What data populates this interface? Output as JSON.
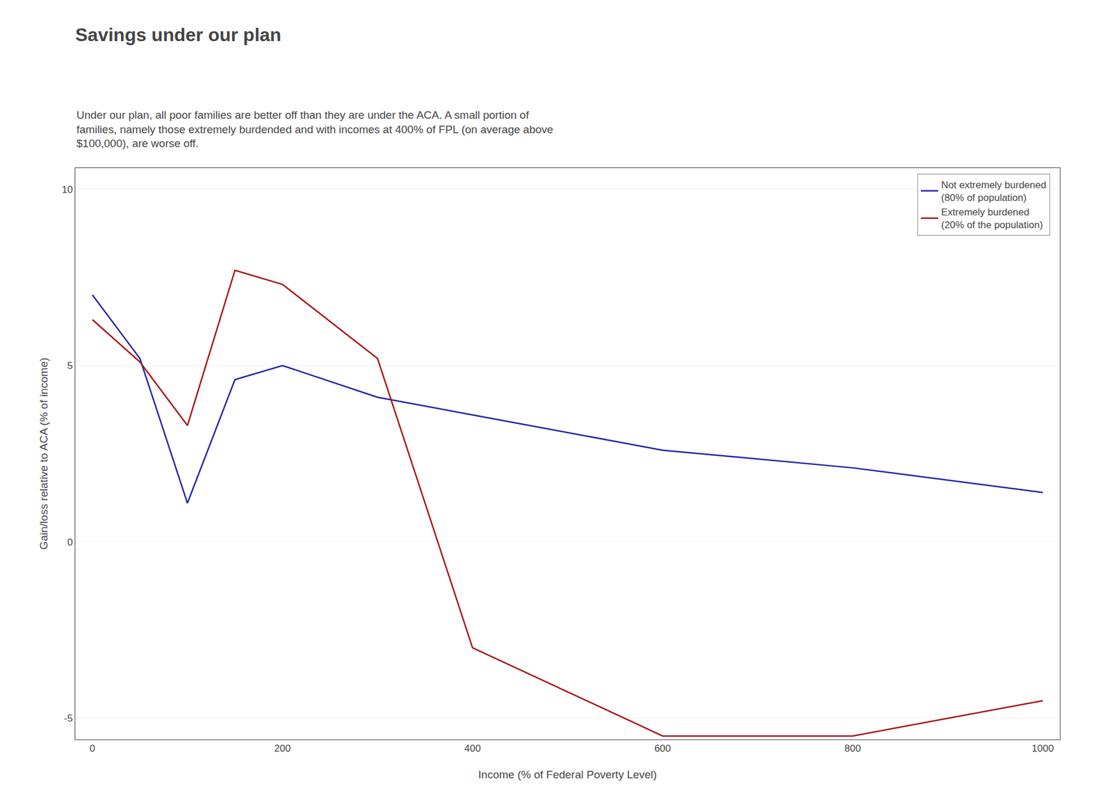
{
  "chart_data": {
    "type": "line",
    "title": "Savings under our plan",
    "subtitle": "Under our plan, all poor families are better off than they are under the ACA. A small portion of\nfamilies, namely those extremely burdended and with incomes at 400% of FPL (on average above\n$100,000), are worse off.",
    "xlabel": "Income (% of Federal Poverty Level)",
    "ylabel": "Gain/loss relative to ACA (% of income)",
    "x": [
      0,
      50,
      100,
      150,
      200,
      300,
      400,
      600,
      800,
      1000
    ],
    "series": [
      {
        "name": "Not extremely burdened\n(80% of population)",
        "color": "#2222aa",
        "values": [
          7.0,
          5.2,
          1.1,
          4.6,
          5.0,
          4.1,
          3.6,
          2.6,
          2.1,
          1.4
        ]
      },
      {
        "name": "Extremely burdened\n(20% of the population)",
        "color": "#aa1111",
        "values": [
          6.3,
          5.1,
          3.3,
          7.7,
          7.3,
          5.2,
          -3.0,
          -5.5,
          -5.5,
          -4.5
        ]
      }
    ],
    "xlim": [
      -18,
      1018
    ],
    "ylim": [
      -5.6,
      10.6
    ],
    "xticks": [
      0,
      200,
      400,
      600,
      800,
      1000
    ],
    "yticks": [
      -5,
      0,
      5,
      10
    ],
    "grid": "y",
    "legend": "upper right"
  }
}
